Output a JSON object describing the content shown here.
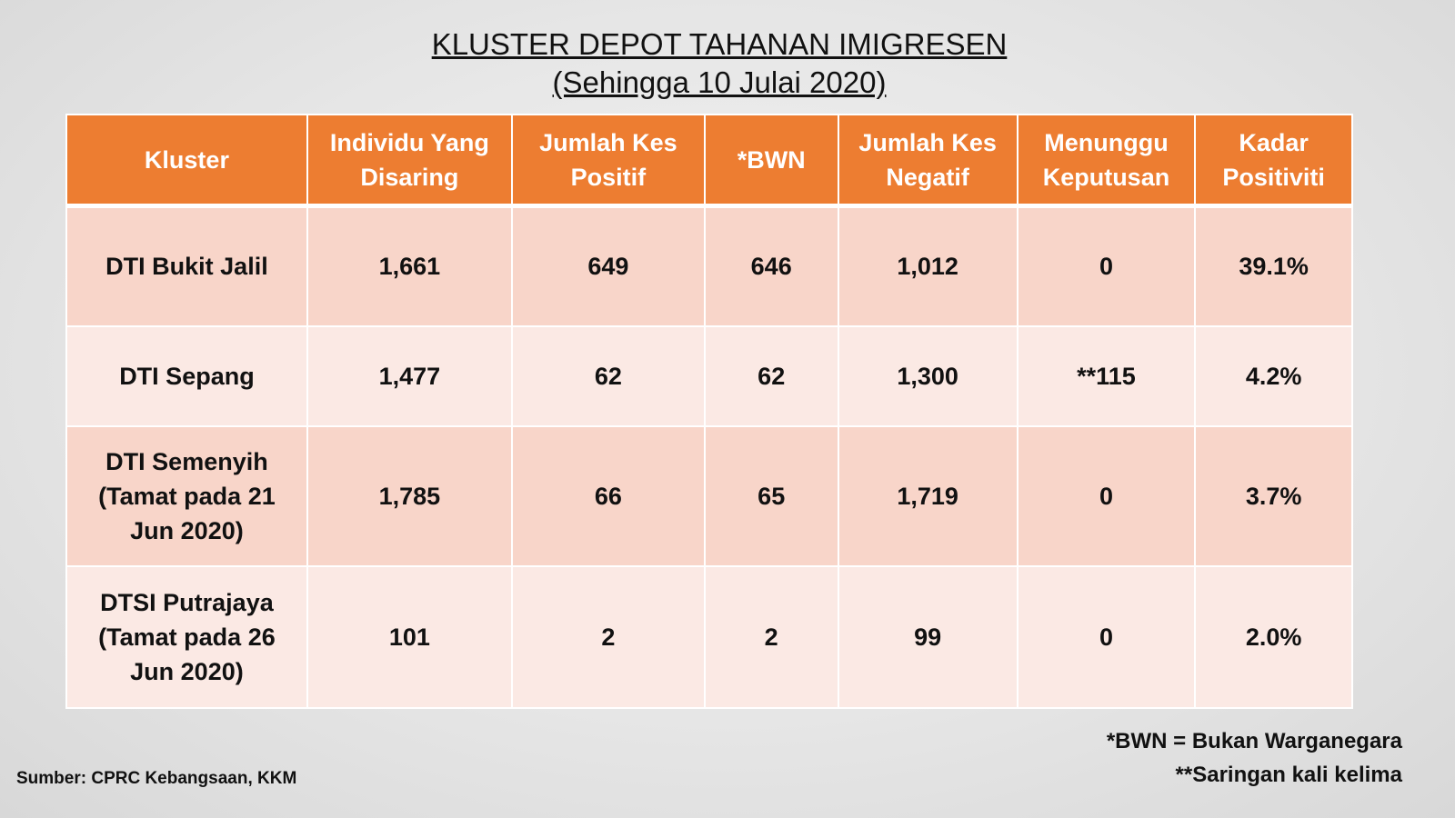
{
  "header": {
    "title": "KLUSTER DEPOT TAHANAN IMIGRESEN",
    "subtitle": "(Sehingga 10 Julai 2020)"
  },
  "table": {
    "columns": [
      "Kluster",
      "Individu Yang Disaring",
      "Jumlah Kes Positif",
      "*BWN",
      "Jumlah Kes Negatif",
      "Menunggu Keputusan",
      "Kadar Positiviti"
    ],
    "rows": [
      [
        "DTI Bukit Jalil",
        "1,661",
        "649",
        "646",
        "1,012",
        "0",
        "39.1%"
      ],
      [
        "DTI Sepang",
        "1,477",
        "62",
        "62",
        "1,300",
        "**115",
        "4.2%"
      ],
      [
        "DTI Semenyih (Tamat pada 21 Jun 2020)",
        "1,785",
        "66",
        "65",
        "1,719",
        "0",
        "3.7%"
      ],
      [
        "DTSI Putrajaya (Tamat pada 26 Jun 2020)",
        "101",
        "2",
        "2",
        "99",
        "0",
        "2.0%"
      ]
    ]
  },
  "notes": [
    "*BWN = Bukan Warganegara",
    "**Saringan kali kelima"
  ],
  "source": "Sumber: CPRC Kebangsaan, KKM"
}
